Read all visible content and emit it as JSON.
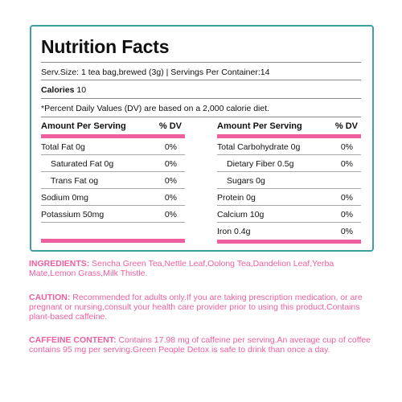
{
  "panel": {
    "title": "Nutrition Facts",
    "serving_line": "Serv.Size: 1 tea bag,brewed (3g) | Servings Per Container:14",
    "calories_label": "Calories",
    "calories_value": "10",
    "dv_note": "*Percent Daily Values (DV) are based on a 2,000 calorie diet."
  },
  "left_table": {
    "header_name": "Amount Per Serving",
    "header_dv": "% DV",
    "rows": [
      {
        "name": "Total Fat 0g",
        "dv": "0%"
      },
      {
        "name": "Saturated Fat 0g",
        "dv": "0%"
      },
      {
        "name": "Trans Fat og",
        "dv": "0%"
      },
      {
        "name": "Sodium 0mg",
        "dv": "0%"
      },
      {
        "name": "Potassium 50mg",
        "dv": "0%"
      }
    ]
  },
  "right_table": {
    "header_name": "Amount Per Serving",
    "header_dv": "% DV",
    "rows": [
      {
        "name": "Total Carbohydrate 0g",
        "dv": "0%"
      },
      {
        "name": "Dietary Fiber 0.5g",
        "dv": "0%"
      },
      {
        "name": "Sugars 0g",
        "dv": ""
      },
      {
        "name": "Protein 0g",
        "dv": "0%"
      },
      {
        "name": "Calcium 10g",
        "dv": "0%"
      },
      {
        "name": "Iron 0.4g",
        "dv": "0%"
      }
    ]
  },
  "ingredients": {
    "label": "INGREDIENTS:",
    "text": " Sencha Green Tea,Nettle Leaf,Oolong Tea,Dandelion Leaf,Yerba Mate,Lemon Grass,Milk Thistle."
  },
  "caution": {
    "label": "CAUTION:",
    "text": " Recommended for adults only.If you are taking prescription medication, or are pregnant or nursing,consult your health care provider prior to using this product.Contains plant-based caffeine."
  },
  "caffeine": {
    "label": "CAFFEINE CONTENT:",
    "text": " Contains 17.98 mg of caffeine per serving.An average cup of coffee contains 95 mg per serving.Green People Detox is safe to drink than once a day."
  },
  "colors": {
    "panel_border": "#3f9fa2",
    "accent_pink": "#ef5fa0",
    "text": "#111111"
  }
}
